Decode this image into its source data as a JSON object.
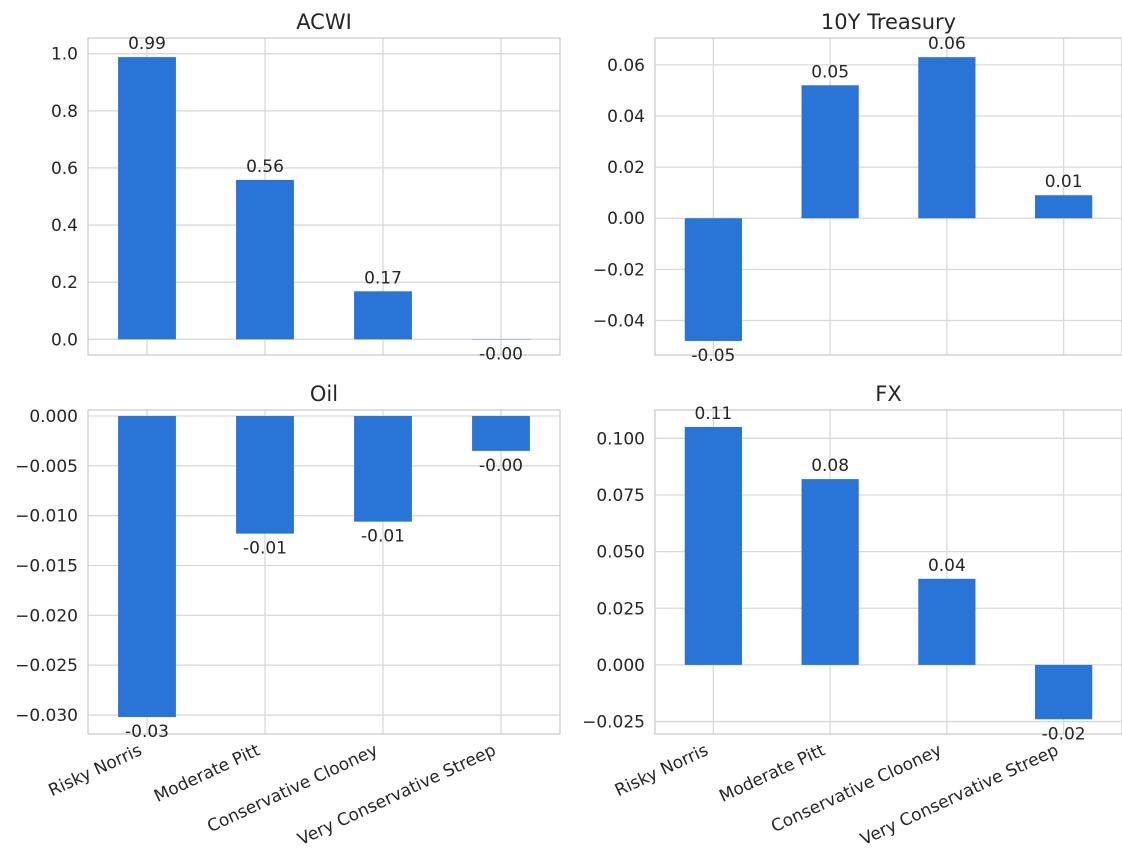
{
  "chart_data": [
    {
      "type": "bar",
      "title": "ACWI",
      "categories": [
        "Risky Norris",
        "Moderate Pitt",
        "Conservative Clooney",
        "Very Conservative Streep"
      ],
      "values": [
        0.988,
        0.558,
        0.168,
        -0.001
      ],
      "data_labels": [
        "0.99",
        "0.56",
        "0.17",
        "-0.00"
      ],
      "ylim": [
        -0.055,
        1.055
      ],
      "yticks": [
        0.0,
        0.2,
        0.4,
        0.6,
        0.8,
        1.0
      ],
      "ytick_labels": [
        "0.0",
        "0.2",
        "0.4",
        "0.6",
        "0.8",
        "1.0"
      ],
      "show_xticklabels": false,
      "grid": true,
      "color": "#2874d7"
    },
    {
      "type": "bar",
      "title": "10Y Treasury",
      "categories": [
        "Risky Norris",
        "Moderate Pitt",
        "Conservative Clooney",
        "Very Conservative Streep"
      ],
      "values": [
        -0.048,
        0.052,
        0.063,
        0.009
      ],
      "data_labels": [
        "-0.05",
        "0.05",
        "0.06",
        "0.01"
      ],
      "ylim": [
        -0.0535,
        0.0705
      ],
      "yticks": [
        -0.04,
        -0.02,
        0.0,
        0.02,
        0.04,
        0.06
      ],
      "ytick_labels": [
        "−0.04",
        "−0.02",
        "0.00",
        "0.02",
        "0.04",
        "0.06"
      ],
      "show_xticklabels": false,
      "grid": true,
      "color": "#2874d7"
    },
    {
      "type": "bar",
      "title": "Oil",
      "categories": [
        "Risky Norris",
        "Moderate Pitt",
        "Conservative Clooney",
        "Very Conservative Streep"
      ],
      "values": [
        -0.0302,
        -0.0118,
        -0.0106,
        -0.0035
      ],
      "data_labels": [
        "-0.03",
        "-0.01",
        "-0.01",
        "-0.00"
      ],
      "ylim": [
        -0.0319,
        0.0006
      ],
      "yticks": [
        0.0,
        -0.005,
        -0.01,
        -0.015,
        -0.02,
        -0.025,
        -0.03
      ],
      "ytick_labels": [
        "0.000",
        "−0.005",
        "−0.010",
        "−0.015",
        "−0.020",
        "−0.025",
        "−0.030"
      ],
      "show_xticklabels": true,
      "grid": true,
      "color": "#2874d7"
    },
    {
      "type": "bar",
      "title": "FX",
      "categories": [
        "Risky Norris",
        "Moderate Pitt",
        "Conservative Clooney",
        "Very Conservative Streep"
      ],
      "values": [
        0.105,
        0.082,
        0.038,
        -0.024
      ],
      "data_labels": [
        "0.11",
        "0.08",
        "0.04",
        "-0.02"
      ],
      "ylim": [
        -0.0305,
        0.1125
      ],
      "yticks": [
        -0.025,
        0.0,
        0.025,
        0.05,
        0.075,
        0.1
      ],
      "ytick_labels": [
        "−0.025",
        "0.000",
        "0.025",
        "0.050",
        "0.075",
        "0.100"
      ],
      "show_xticklabels": true,
      "grid": true,
      "color": "#2874d7"
    }
  ]
}
